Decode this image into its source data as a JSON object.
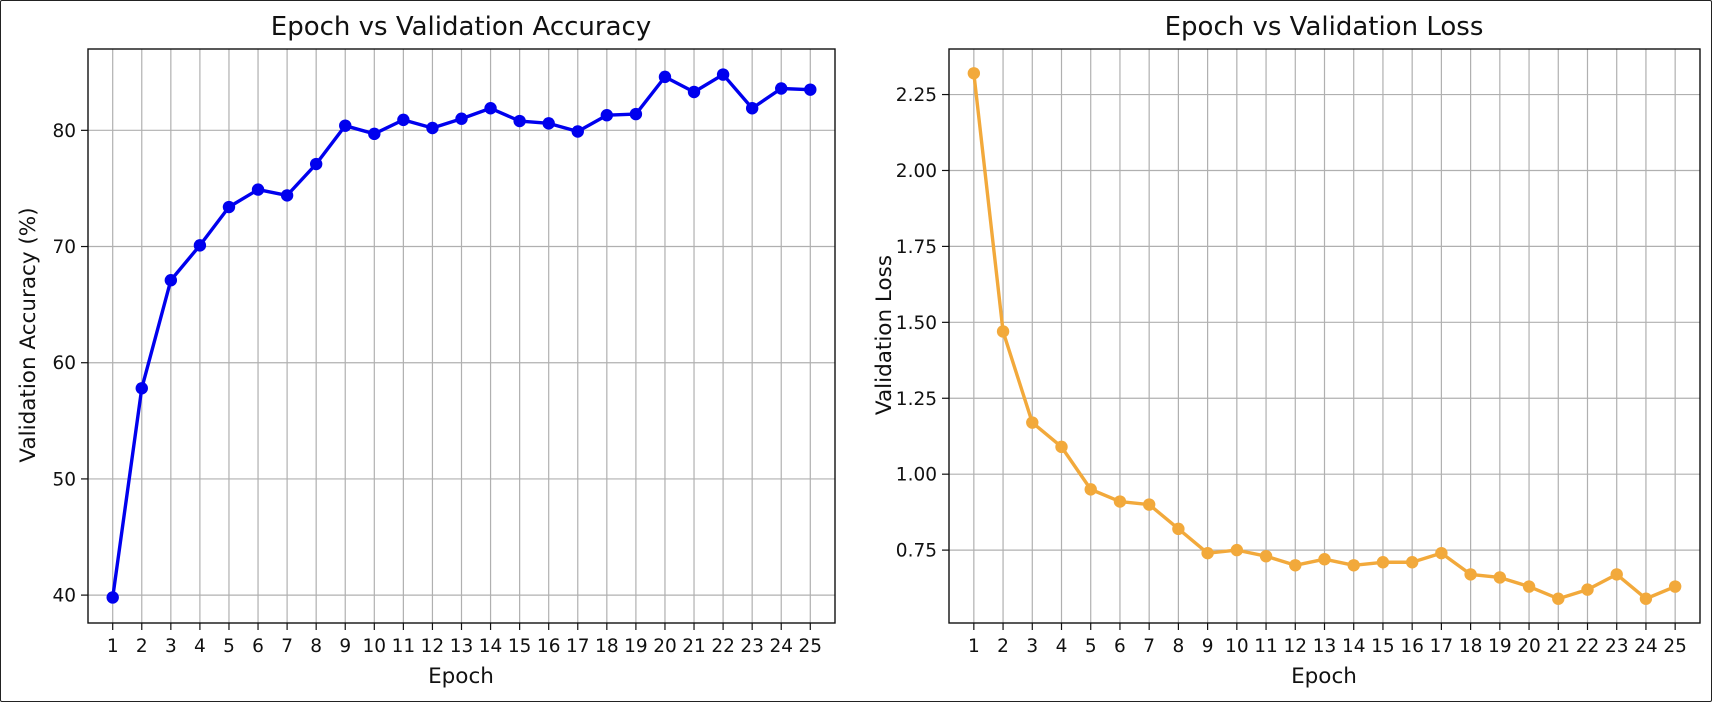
{
  "chart_data": [
    {
      "type": "line",
      "title": "Epoch vs Validation Accuracy",
      "xlabel": "Epoch",
      "ylabel": "Validation Accuracy (%)",
      "grid": true,
      "xlim": [
        0.15,
        25.85
      ],
      "ylim": [
        37.6,
        87.0
      ],
      "yticks": [
        40,
        50,
        60,
        70,
        80
      ],
      "ytick_labels": [
        "40",
        "50",
        "60",
        "70",
        "80"
      ],
      "color": "#0000ee",
      "x": [
        1,
        2,
        3,
        4,
        5,
        6,
        7,
        8,
        9,
        10,
        11,
        12,
        13,
        14,
        15,
        16,
        17,
        18,
        19,
        20,
        21,
        22,
        23,
        24,
        25
      ],
      "x_tick_labels": [
        "1",
        "2",
        "3",
        "4",
        "5",
        "6",
        "7",
        "8",
        "9",
        "10",
        "11",
        "12",
        "13",
        "14",
        "15",
        "16",
        "17",
        "18",
        "19",
        "20",
        "21",
        "22",
        "23",
        "24",
        "25"
      ],
      "series": [
        {
          "values": [
            39.8,
            57.8,
            67.1,
            70.1,
            73.4,
            74.9,
            74.4,
            77.1,
            80.4,
            79.7,
            80.9,
            80.2,
            81.0,
            81.9,
            80.8,
            80.6,
            79.9,
            81.3,
            81.4,
            84.6,
            83.3,
            84.8,
            81.9,
            83.6,
            83.5
          ]
        }
      ]
    },
    {
      "type": "line",
      "title": "Epoch vs Validation Loss",
      "xlabel": "Epoch",
      "ylabel": "Validation Loss",
      "grid": true,
      "xlim": [
        0.15,
        25.85
      ],
      "ylim": [
        0.51,
        2.4
      ],
      "yticks": [
        0.75,
        1.0,
        1.25,
        1.5,
        1.75,
        2.0,
        2.25
      ],
      "ytick_labels": [
        "0.75",
        "1.00",
        "1.25",
        "1.50",
        "1.75",
        "2.00",
        "2.25"
      ],
      "color": "#f2a93b",
      "x": [
        1,
        2,
        3,
        4,
        5,
        6,
        7,
        8,
        9,
        10,
        11,
        12,
        13,
        14,
        15,
        16,
        17,
        18,
        19,
        20,
        21,
        22,
        23,
        24,
        25
      ],
      "x_tick_labels": [
        "1",
        "2",
        "3",
        "4",
        "5",
        "6",
        "7",
        "8",
        "9",
        "10",
        "11",
        "12",
        "13",
        "14",
        "15",
        "16",
        "17",
        "18",
        "19",
        "20",
        "21",
        "22",
        "23",
        "24",
        "25"
      ],
      "series": [
        {
          "values": [
            2.32,
            1.47,
            1.17,
            1.09,
            0.95,
            0.91,
            0.9,
            0.82,
            0.74,
            0.75,
            0.73,
            0.7,
            0.72,
            0.7,
            0.71,
            0.71,
            0.74,
            0.67,
            0.66,
            0.63,
            0.59,
            0.62,
            0.67,
            0.59,
            0.63
          ]
        }
      ]
    }
  ]
}
